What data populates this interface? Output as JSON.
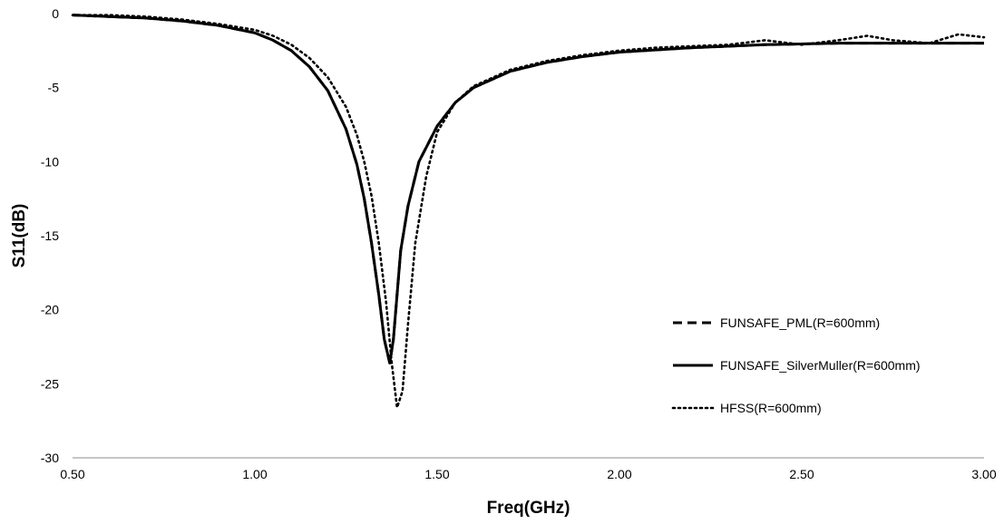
{
  "chart_data": {
    "type": "line",
    "title": "",
    "xlabel": "Freq(GHz)",
    "ylabel": "S11(dB)",
    "xlim": [
      0.5,
      3.0
    ],
    "ylim": [
      -30,
      0
    ],
    "x_ticks": [
      0.5,
      1.0,
      1.5,
      2.0,
      2.5,
      3.0
    ],
    "x_tick_labels": [
      "0.50",
      "1.00",
      "1.50",
      "2.00",
      "2.50",
      "3.00"
    ],
    "y_ticks": [
      0,
      -5,
      -10,
      -15,
      -20,
      -25,
      -30
    ],
    "y_tick_labels": [
      "0",
      "-5",
      "-10",
      "-15",
      "-20",
      "-25",
      "-30"
    ],
    "grid": false,
    "legend_position": "bottom-right",
    "series": [
      {
        "name": "FUNSAFE_PML(R=600mm)",
        "line_style": "dashed",
        "color": "#000000",
        "x": [
          0.5,
          0.6,
          0.7,
          0.8,
          0.9,
          1.0,
          1.05,
          1.1,
          1.15,
          1.2,
          1.25,
          1.28,
          1.3,
          1.32,
          1.34,
          1.355,
          1.37,
          1.38,
          1.39,
          1.4,
          1.42,
          1.45,
          1.5,
          1.55,
          1.6,
          1.7,
          1.8,
          1.9,
          2.0,
          2.2,
          2.4,
          2.6,
          2.8,
          3.0
        ],
        "y": [
          -0.1,
          -0.2,
          -0.3,
          -0.5,
          -0.8,
          -1.3,
          -1.8,
          -2.5,
          -3.6,
          -5.2,
          -7.8,
          -10.2,
          -12.5,
          -15.5,
          -19.0,
          -22.0,
          -23.6,
          -22.0,
          -19.0,
          -16.0,
          -13.0,
          -10.0,
          -7.6,
          -6.0,
          -5.0,
          -3.9,
          -3.3,
          -2.9,
          -2.6,
          -2.3,
          -2.1,
          -2.0,
          -2.0,
          -2.0
        ]
      },
      {
        "name": "FUNSAFE_SilverMuller(R=600mm)",
        "line_style": "solid",
        "color": "#000000",
        "x": [
          0.5,
          0.6,
          0.7,
          0.8,
          0.9,
          1.0,
          1.05,
          1.1,
          1.15,
          1.2,
          1.25,
          1.28,
          1.3,
          1.32,
          1.34,
          1.355,
          1.37,
          1.38,
          1.39,
          1.4,
          1.42,
          1.45,
          1.5,
          1.55,
          1.6,
          1.7,
          1.8,
          1.9,
          2.0,
          2.2,
          2.4,
          2.6,
          2.8,
          3.0
        ],
        "y": [
          -0.1,
          -0.2,
          -0.3,
          -0.5,
          -0.8,
          -1.3,
          -1.8,
          -2.5,
          -3.6,
          -5.2,
          -7.8,
          -10.2,
          -12.5,
          -15.5,
          -19.0,
          -22.0,
          -23.6,
          -22.0,
          -19.0,
          -16.0,
          -13.0,
          -10.0,
          -7.6,
          -6.0,
          -5.0,
          -3.9,
          -3.3,
          -2.9,
          -2.6,
          -2.3,
          -2.1,
          -2.0,
          -2.0,
          -2.0
        ]
      },
      {
        "name": "HFSS(R=600mm)",
        "line_style": "dotted",
        "color": "#000000",
        "x": [
          0.5,
          0.6,
          0.7,
          0.8,
          0.9,
          1.0,
          1.05,
          1.1,
          1.15,
          1.2,
          1.25,
          1.28,
          1.3,
          1.32,
          1.34,
          1.36,
          1.375,
          1.39,
          1.405,
          1.42,
          1.44,
          1.47,
          1.5,
          1.55,
          1.6,
          1.7,
          1.8,
          1.9,
          2.0,
          2.1,
          2.2,
          2.3,
          2.4,
          2.5,
          2.6,
          2.68,
          2.75,
          2.85,
          2.93,
          3.0
        ],
        "y": [
          -0.1,
          -0.1,
          -0.2,
          -0.4,
          -0.7,
          -1.1,
          -1.5,
          -2.1,
          -3.0,
          -4.3,
          -6.3,
          -8.2,
          -10.0,
          -12.3,
          -15.5,
          -19.5,
          -23.5,
          -26.6,
          -25.5,
          -21.0,
          -15.5,
          -11.0,
          -8.0,
          -6.0,
          -4.9,
          -3.8,
          -3.2,
          -2.8,
          -2.5,
          -2.3,
          -2.2,
          -2.1,
          -1.8,
          -2.1,
          -1.8,
          -1.5,
          -1.8,
          -2.0,
          -1.4,
          -1.6
        ]
      }
    ]
  }
}
